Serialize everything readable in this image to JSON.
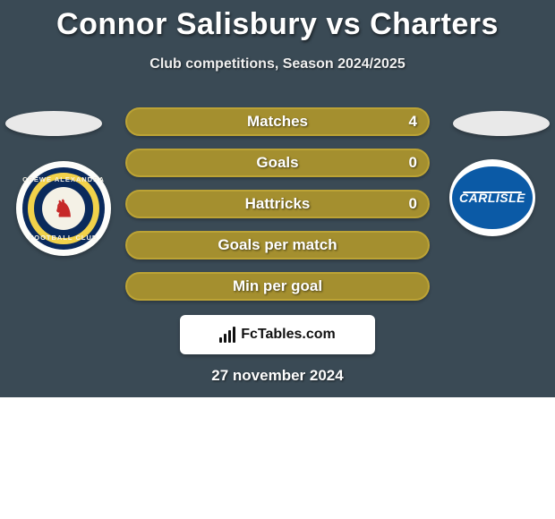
{
  "header": {
    "title": "Connor Salisbury vs Charters",
    "subtitle": "Club competitions, Season 2024/2025"
  },
  "colors": {
    "background": "#3a4a55",
    "row_fill": "#a48f2f",
    "row_border": "#bca335",
    "text_white": "#ffffff"
  },
  "left_team": {
    "crest_name": "crewe-alexandra",
    "crest_label_top": "CREWE ALEXANDRA",
    "crest_label_bottom": "FOOTBALL CLUB",
    "crest_outer_bg": "#0a2a5c",
    "crest_ring": "#f2d24a",
    "crest_inner_bg": "#f4f1e6",
    "crest_glyph": "♞"
  },
  "right_team": {
    "crest_name": "carlisle",
    "crest_label": "CARLISLE",
    "crest_bg": "#0b5aa6",
    "crest_text": "#ffffff"
  },
  "rows": [
    {
      "label": "Matches",
      "left": "",
      "right": "4"
    },
    {
      "label": "Goals",
      "left": "",
      "right": "0"
    },
    {
      "label": "Hattricks",
      "left": "",
      "right": "0"
    },
    {
      "label": "Goals per match",
      "left": "",
      "right": ""
    },
    {
      "label": "Min per goal",
      "left": "",
      "right": ""
    }
  ],
  "footer": {
    "brand_prefix": "Fc",
    "brand_rest": "Tables.com",
    "date": "27 november 2024"
  }
}
